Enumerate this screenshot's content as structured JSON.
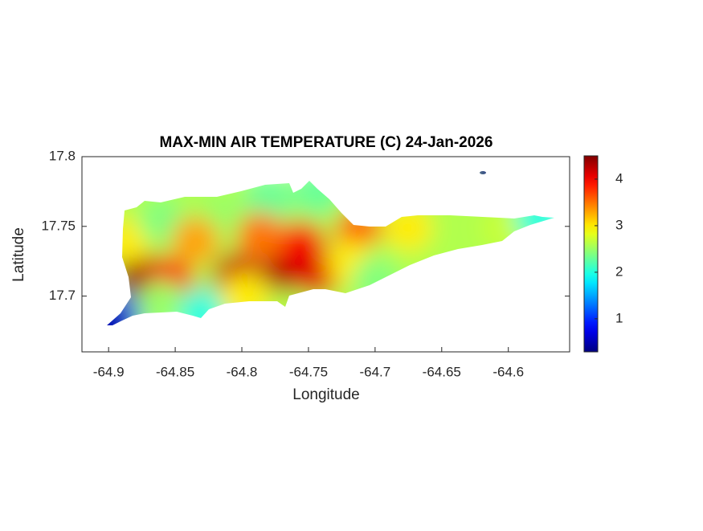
{
  "chart_data": {
    "type": "contour",
    "title": "MAX-MIN AIR TEMPERATURE (C) 24-Jan-2026",
    "xlabel": "Longitude",
    "ylabel": "Latitude",
    "xlim": [
      -64.92,
      -64.554
    ],
    "xticks": [
      -64.9,
      -64.85,
      -64.8,
      -64.75,
      -64.7,
      -64.65,
      -64.6
    ],
    "ylim": [
      17.66,
      17.8
    ],
    "yticks": [
      17.7,
      17.75,
      17.8
    ],
    "lon": [
      -64.878,
      -64.854,
      -64.804,
      -64.768,
      -64.755,
      -64.743,
      -64.885,
      -64.86,
      -64.817,
      -64.78,
      -64.743,
      -64.835,
      -64.786,
      -64.712,
      -64.718,
      -64.687,
      -64.675,
      -64.638,
      -64.601,
      -64.577,
      -64.86,
      -64.829,
      -64.798,
      -64.894,
      -64.9,
      -64.613,
      -64.7
    ],
    "lat": [
      17.717,
      17.711,
      17.714,
      17.72,
      17.737,
      17.717,
      17.74,
      17.754,
      17.758,
      17.769,
      17.775,
      17.74,
      17.743,
      17.746,
      17.723,
      17.728,
      17.749,
      17.749,
      17.749,
      17.756,
      17.694,
      17.688,
      17.699,
      17.685,
      17.679,
      17.789,
      17.711
    ],
    "values": [
      4.4,
      4.0,
      4.2,
      4.3,
      4.0,
      4.1,
      3.0,
      2.4,
      2.5,
      2.3,
      2.3,
      3.3,
      3.5,
      3.6,
      3.0,
      2.6,
      3.0,
      2.6,
      2.7,
      2.0,
      2.5,
      2.0,
      3.0,
      1.2,
      0.5,
      0.3,
      2.4
    ],
    "colormap": "jet",
    "clim": [
      0.29,
      4.5
    ],
    "cticks": [
      1,
      2,
      3,
      4
    ]
  }
}
